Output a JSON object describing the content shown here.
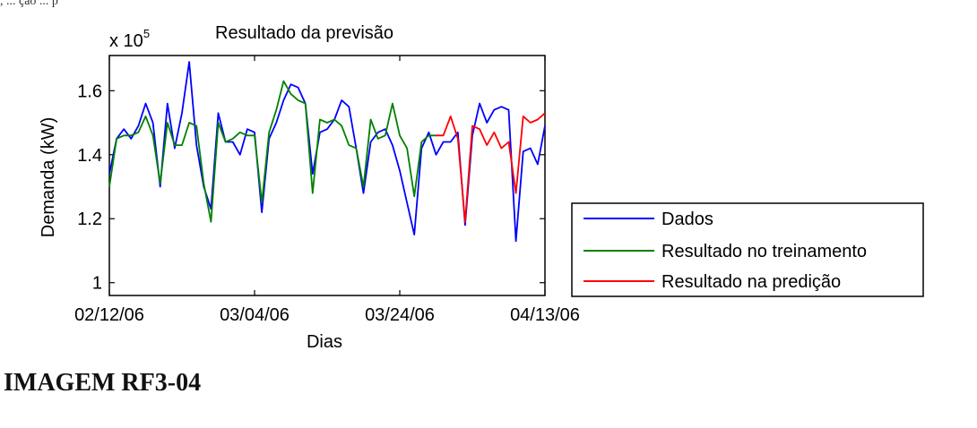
{
  "top_fragment": ", ... ção ... p",
  "caption": "IMAGEM RF3-04",
  "chart_data": {
    "type": "line",
    "title": "Resultado da previsão",
    "xlabel": "Dias",
    "ylabel": "Demanda (kW)",
    "y_multiplier_base": "x 10",
    "y_multiplier_exp": "5",
    "x_tick_labels": [
      "02/12/06",
      "03/04/06",
      "03/24/06",
      "04/13/06"
    ],
    "x_tick_days": [
      0,
      20,
      40,
      60
    ],
    "xlim": [
      0,
      60
    ],
    "ylim": [
      0.96,
      1.71
    ],
    "y_ticks": [
      1.0,
      1.2,
      1.4,
      1.6
    ],
    "y_tick_labels": [
      "1",
      "1.2",
      "1.4",
      "1.6"
    ],
    "legend_position": "outside-right",
    "series": [
      {
        "name": "Dados",
        "color": "#0000ff",
        "x": [
          0,
          1,
          2,
          3,
          4,
          5,
          6,
          7,
          8,
          9,
          10,
          11,
          12,
          13,
          14,
          15,
          16,
          17,
          18,
          19,
          20,
          21,
          22,
          23,
          24,
          25,
          26,
          27,
          28,
          29,
          30,
          31,
          32,
          33,
          34,
          35,
          36,
          37,
          38,
          39,
          40,
          41,
          42,
          43,
          44,
          45,
          46,
          47,
          48,
          49,
          50,
          51,
          52,
          53,
          54,
          55,
          56,
          57,
          58,
          59,
          60
        ],
        "y": [
          1.34,
          1.45,
          1.48,
          1.45,
          1.49,
          1.56,
          1.5,
          1.3,
          1.56,
          1.42,
          1.53,
          1.69,
          1.43,
          1.3,
          1.23,
          1.53,
          1.44,
          1.44,
          1.4,
          1.48,
          1.47,
          1.22,
          1.45,
          1.5,
          1.57,
          1.62,
          1.61,
          1.56,
          1.34,
          1.47,
          1.48,
          1.51,
          1.57,
          1.55,
          1.42,
          1.28,
          1.44,
          1.47,
          1.48,
          1.43,
          1.35,
          1.25,
          1.15,
          1.42,
          1.47,
          1.4,
          1.44,
          1.44,
          1.47,
          1.18,
          1.46,
          1.56,
          1.5,
          1.54,
          1.55,
          1.54,
          1.13,
          1.41,
          1.42,
          1.37,
          1.49
        ]
      },
      {
        "name": "Resultado no treinamento",
        "color": "#008000",
        "x": [
          0,
          1,
          2,
          3,
          4,
          5,
          6,
          7,
          8,
          9,
          10,
          11,
          12,
          13,
          14,
          15,
          16,
          17,
          18,
          19,
          20,
          21,
          22,
          23,
          24,
          25,
          26,
          27,
          28,
          29,
          30,
          31,
          32,
          33,
          34,
          35,
          36,
          37,
          38,
          39,
          40,
          41,
          42,
          43,
          44,
          45
        ],
        "y": [
          1.3,
          1.45,
          1.46,
          1.46,
          1.47,
          1.52,
          1.46,
          1.31,
          1.5,
          1.43,
          1.43,
          1.5,
          1.49,
          1.31,
          1.19,
          1.5,
          1.44,
          1.45,
          1.47,
          1.46,
          1.46,
          1.25,
          1.47,
          1.54,
          1.63,
          1.59,
          1.57,
          1.56,
          1.28,
          1.51,
          1.5,
          1.51,
          1.49,
          1.43,
          1.42,
          1.3,
          1.51,
          1.45,
          1.46,
          1.56,
          1.46,
          1.42,
          1.27,
          1.44,
          1.46,
          1.46
        ]
      },
      {
        "name": "Resultado na predição",
        "color": "#ff0000",
        "x": [
          45,
          46,
          47,
          48,
          49,
          50,
          51,
          52,
          53,
          54,
          55,
          56,
          57,
          58,
          59,
          60
        ],
        "y": [
          1.46,
          1.46,
          1.52,
          1.45,
          1.19,
          1.49,
          1.48,
          1.43,
          1.47,
          1.42,
          1.44,
          1.28,
          1.52,
          1.5,
          1.51,
          1.53
        ]
      }
    ]
  }
}
